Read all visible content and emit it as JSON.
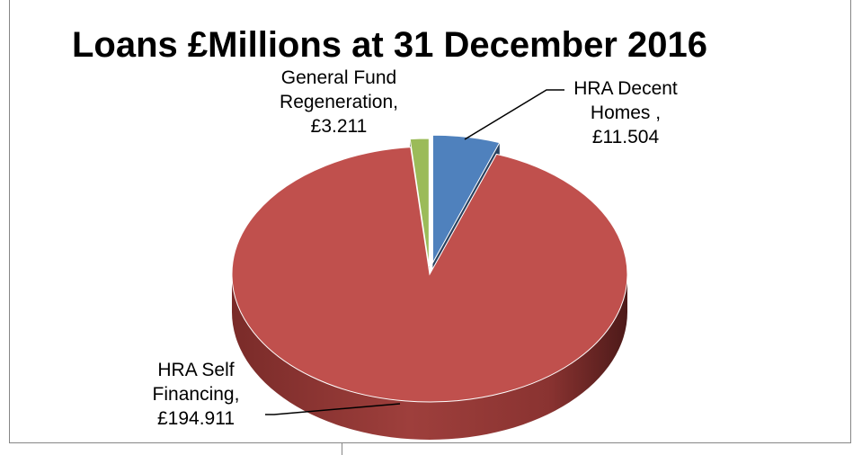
{
  "chart_data": {
    "type": "pie",
    "title": "Loans £Millions at 31 December 2016",
    "slices": [
      {
        "name": "HRA Decent Homes",
        "label_lines": [
          "HRA Decent",
          "Homes ,",
          "£11.504"
        ],
        "value": 11.504,
        "color": "#4f81bd"
      },
      {
        "name": "HRA Self Financing",
        "label_lines": [
          "HRA Self",
          "Financing,",
          "£194.911"
        ],
        "value": 194.911,
        "color": "#c0504d"
      },
      {
        "name": "General Fund Regeneration",
        "label_lines": [
          "General Fund",
          "Regeneration,",
          "£3.211"
        ],
        "value": 3.211,
        "color": "#9bbb59"
      }
    ],
    "style": "3d-exploded",
    "legend": "none"
  }
}
